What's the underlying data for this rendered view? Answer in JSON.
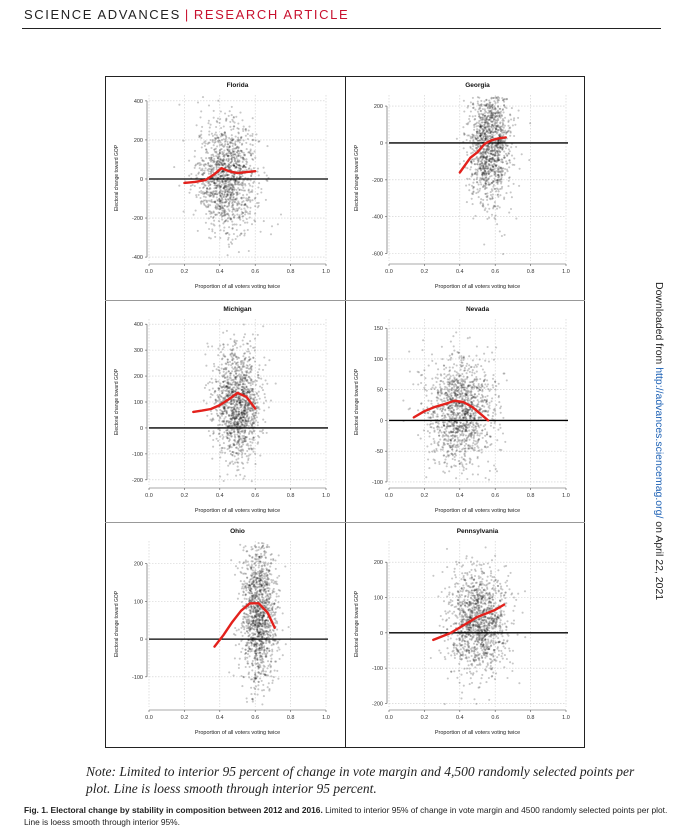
{
  "header": {
    "journal": "SCIENCE ADVANCES",
    "separator": "|",
    "section": "RESEARCH ARTICLE"
  },
  "side_note": {
    "prefix": "Downloaded from ",
    "link": "http://advances.sciencemag.org/",
    "suffix": " on April 22, 2021"
  },
  "note": "Note: Limited to interior 95 percent of change in vote margin and 4,500 randomly selected points per plot. Line is loess smooth through interior 95 percent.",
  "caption": {
    "label": "Fig. 1. Electoral change by stability in composition between 2012 and 2016.",
    "text": " Limited to interior 95% of change in vote margin and 4500 randomly selected points per plot. Line is loess smooth through interior 95%."
  },
  "colors": {
    "points": "#000000",
    "loess": "#e3211c",
    "zero_line": "#000000"
  },
  "chart_data": [
    {
      "type": "scatter",
      "title": "Florida",
      "xlabel": "Proportion of all voters voting twice",
      "ylabel": "Electoral change toward GOP",
      "xlim": [
        0,
        1.0
      ],
      "ylim": [
        -420,
        430
      ],
      "x_ticks": [
        "0.0",
        "0.2",
        "0.4",
        "0.6",
        "0.8",
        "1.0"
      ],
      "y_ticks": [
        -400,
        -200,
        0,
        200,
        400
      ],
      "cloud": {
        "x_center": 0.44,
        "x_spread": 0.085,
        "y_center": 10,
        "y_spread": 140,
        "y_min": -400,
        "y_max": 420
      },
      "loess": {
        "x": [
          0.2,
          0.26,
          0.32,
          0.37,
          0.41,
          0.45,
          0.5,
          0.55,
          0.6
        ],
        "y": [
          -20,
          -15,
          -5,
          25,
          55,
          40,
          30,
          35,
          40
        ]
      }
    },
    {
      "type": "scatter",
      "title": "Georgia",
      "xlabel": "Proportion of all voters voting twice",
      "ylabel": "Electoral change toward GOP",
      "xlim": [
        0,
        1.0
      ],
      "ylim": [
        -640,
        260
      ],
      "x_ticks": [
        "0.0",
        "0.2",
        "0.4",
        "0.6",
        "0.8",
        "1.0"
      ],
      "y_ticks": [
        -600,
        -400,
        -200,
        0,
        200
      ],
      "cloud": {
        "x_center": 0.57,
        "x_spread": 0.06,
        "y_center": 0,
        "y_spread": 170,
        "y_min": -620,
        "y_max": 250
      },
      "loess": {
        "x": [
          0.4,
          0.43,
          0.46,
          0.5,
          0.54,
          0.58,
          0.62,
          0.66
        ],
        "y": [
          -160,
          -120,
          -80,
          -50,
          -5,
          15,
          25,
          30
        ]
      }
    },
    {
      "type": "scatter",
      "title": "Michigan",
      "xlabel": "Proportion of all voters voting twice",
      "ylabel": "Electoral change toward GOP",
      "xlim": [
        0,
        1.0
      ],
      "ylim": [
        -220,
        420
      ],
      "x_ticks": [
        "0.0",
        "0.2",
        "0.4",
        "0.6",
        "0.8",
        "1.0"
      ],
      "y_ticks": [
        -200,
        -100,
        0,
        100,
        200,
        300,
        400
      ],
      "cloud": {
        "x_center": 0.5,
        "x_spread": 0.065,
        "y_center": 90,
        "y_spread": 110,
        "y_min": -210,
        "y_max": 410
      },
      "loess": {
        "x": [
          0.25,
          0.3,
          0.35,
          0.4,
          0.45,
          0.5,
          0.55,
          0.6
        ],
        "y": [
          62,
          67,
          73,
          88,
          110,
          135,
          120,
          75
        ]
      }
    },
    {
      "type": "scatter",
      "title": "Nevada",
      "xlabel": "Proportion of all voters voting twice",
      "ylabel": "Electoral change toward GOP",
      "xlim": [
        0,
        1.0
      ],
      "ylim": [
        -105,
        165
      ],
      "x_ticks": [
        "0.0",
        "0.2",
        "0.4",
        "0.6",
        "0.8",
        "1.0"
      ],
      "y_ticks": [
        -100,
        -50,
        0,
        50,
        100,
        150
      ],
      "cloud": {
        "x_center": 0.4,
        "x_spread": 0.1,
        "y_center": 15,
        "y_spread": 45,
        "y_min": -100,
        "y_max": 160
      },
      "loess": {
        "x": [
          0.14,
          0.2,
          0.26,
          0.32,
          0.37,
          0.42,
          0.47,
          0.52,
          0.56
        ],
        "y": [
          5,
          15,
          22,
          27,
          32,
          30,
          22,
          10,
          0
        ]
      }
    },
    {
      "type": "scatter",
      "title": "Ohio",
      "xlabel": "Proportion of all voters voting twice",
      "ylabel": "Electoral change toward GOP",
      "xlim": [
        0,
        1.0
      ],
      "ylim": [
        -180,
        260
      ],
      "x_ticks": [
        "0.0",
        "0.2",
        "0.4",
        "0.6",
        "0.8",
        "1.0"
      ],
      "y_ticks": [
        -100,
        0,
        100,
        200
      ],
      "cloud": {
        "x_center": 0.62,
        "x_spread": 0.05,
        "y_center": 70,
        "y_spread": 95,
        "y_min": -175,
        "y_max": 255
      },
      "loess": {
        "x": [
          0.37,
          0.42,
          0.47,
          0.52,
          0.57,
          0.62,
          0.67,
          0.71
        ],
        "y": [
          -20,
          10,
          45,
          75,
          95,
          95,
          70,
          30
        ]
      }
    },
    {
      "type": "scatter",
      "title": "Pennsylvania",
      "xlabel": "Proportion of all voters voting twice",
      "ylabel": "Electoral change toward GOP",
      "xlim": [
        0,
        1.0
      ],
      "ylim": [
        -210,
        260
      ],
      "x_ticks": [
        "0.0",
        "0.2",
        "0.4",
        "0.6",
        "0.8",
        "1.0"
      ],
      "y_ticks": [
        -200,
        -100,
        0,
        100,
        200
      ],
      "cloud": {
        "x_center": 0.5,
        "x_spread": 0.085,
        "y_center": 30,
        "y_spread": 75,
        "y_min": -205,
        "y_max": 255
      },
      "loess": {
        "x": [
          0.25,
          0.3,
          0.35,
          0.4,
          0.45,
          0.5,
          0.55,
          0.6,
          0.65
        ],
        "y": [
          -20,
          -10,
          0,
          15,
          30,
          45,
          55,
          65,
          80
        ]
      }
    }
  ]
}
